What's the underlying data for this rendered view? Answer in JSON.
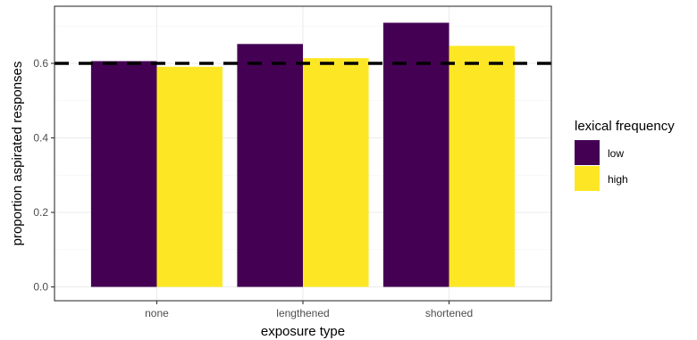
{
  "chart_data": {
    "type": "bar",
    "xlabel": "exposure type",
    "ylabel": "proportion aspirated responses",
    "categories": [
      "none",
      "lengthened",
      "shortened"
    ],
    "series": [
      {
        "name": "low",
        "values": [
          0.606,
          0.652,
          0.709
        ],
        "color": "#440154"
      },
      {
        "name": "high",
        "values": [
          0.591,
          0.614,
          0.647
        ],
        "color": "#FDE725"
      }
    ],
    "y_ticks": [
      0.0,
      0.2,
      0.4,
      0.6
    ],
    "y_tick_labels": [
      "0.0",
      "0.2",
      "0.4",
      "0.6"
    ],
    "ylim": [
      0,
      0.75
    ],
    "reference_line": {
      "y": 0.6,
      "style": "dashed",
      "color": "#000000"
    },
    "legend": {
      "title": "lexical frequency",
      "position": "right"
    },
    "grid": true,
    "panel_border": true
  }
}
